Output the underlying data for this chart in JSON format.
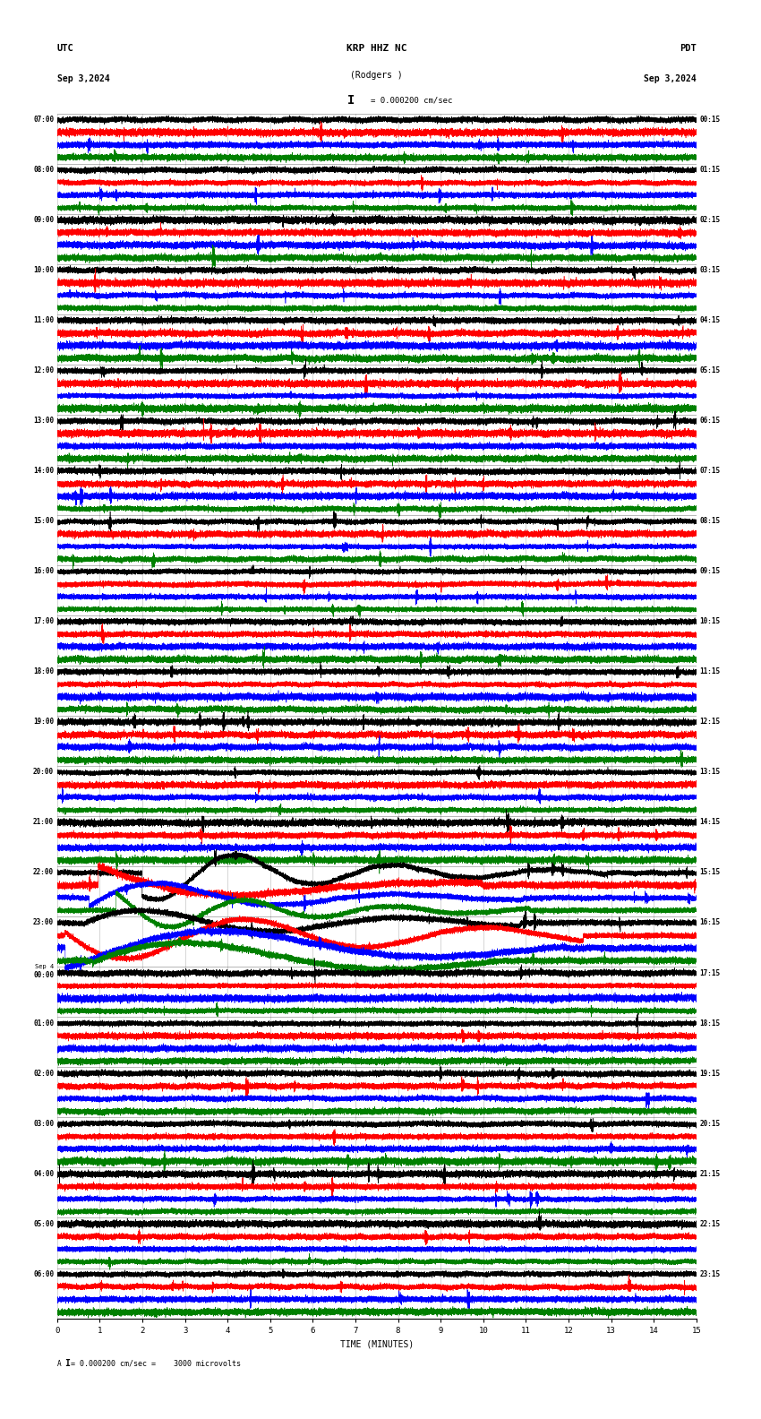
{
  "title_center": "KRP HHZ NC",
  "subtitle_center": "(Rodgers )",
  "label_left_top": "UTC",
  "label_left_date": "Sep 3,2024",
  "label_right_top": "PDT",
  "label_right_date": "Sep 3,2024",
  "scale_label": "= 0.000200 cm/sec",
  "bottom_label": "A I = 0.000200 cm/sec =    3000 microvolts",
  "xlabel": "TIME (MINUTES)",
  "time_minutes": 15,
  "left_times": [
    "07:00",
    "08:00",
    "09:00",
    "10:00",
    "11:00",
    "12:00",
    "13:00",
    "14:00",
    "15:00",
    "16:00",
    "17:00",
    "18:00",
    "19:00",
    "20:00",
    "21:00",
    "22:00",
    "23:00",
    "Sep 4\n00:00",
    "01:00",
    "02:00",
    "03:00",
    "04:00",
    "05:00",
    "06:00"
  ],
  "right_times": [
    "00:15",
    "01:15",
    "02:15",
    "03:15",
    "04:15",
    "05:15",
    "06:15",
    "07:15",
    "08:15",
    "09:15",
    "10:15",
    "11:15",
    "12:15",
    "13:15",
    "14:15",
    "15:15",
    "16:15",
    "17:15",
    "18:15",
    "19:15",
    "20:15",
    "21:15",
    "22:15",
    "23:15"
  ],
  "n_rows": 24,
  "traces_per_row": 4,
  "colors": [
    "black",
    "red",
    "blue",
    "green"
  ],
  "bg_color": "white",
  "font_color": "black",
  "grid_color": "#888888",
  "n_minutes": 15,
  "sample_rate": 40,
  "fig_width": 8.5,
  "fig_height": 15.84,
  "dpi": 100,
  "eq_row_idx": 15,
  "eq_row_idx2": 16
}
